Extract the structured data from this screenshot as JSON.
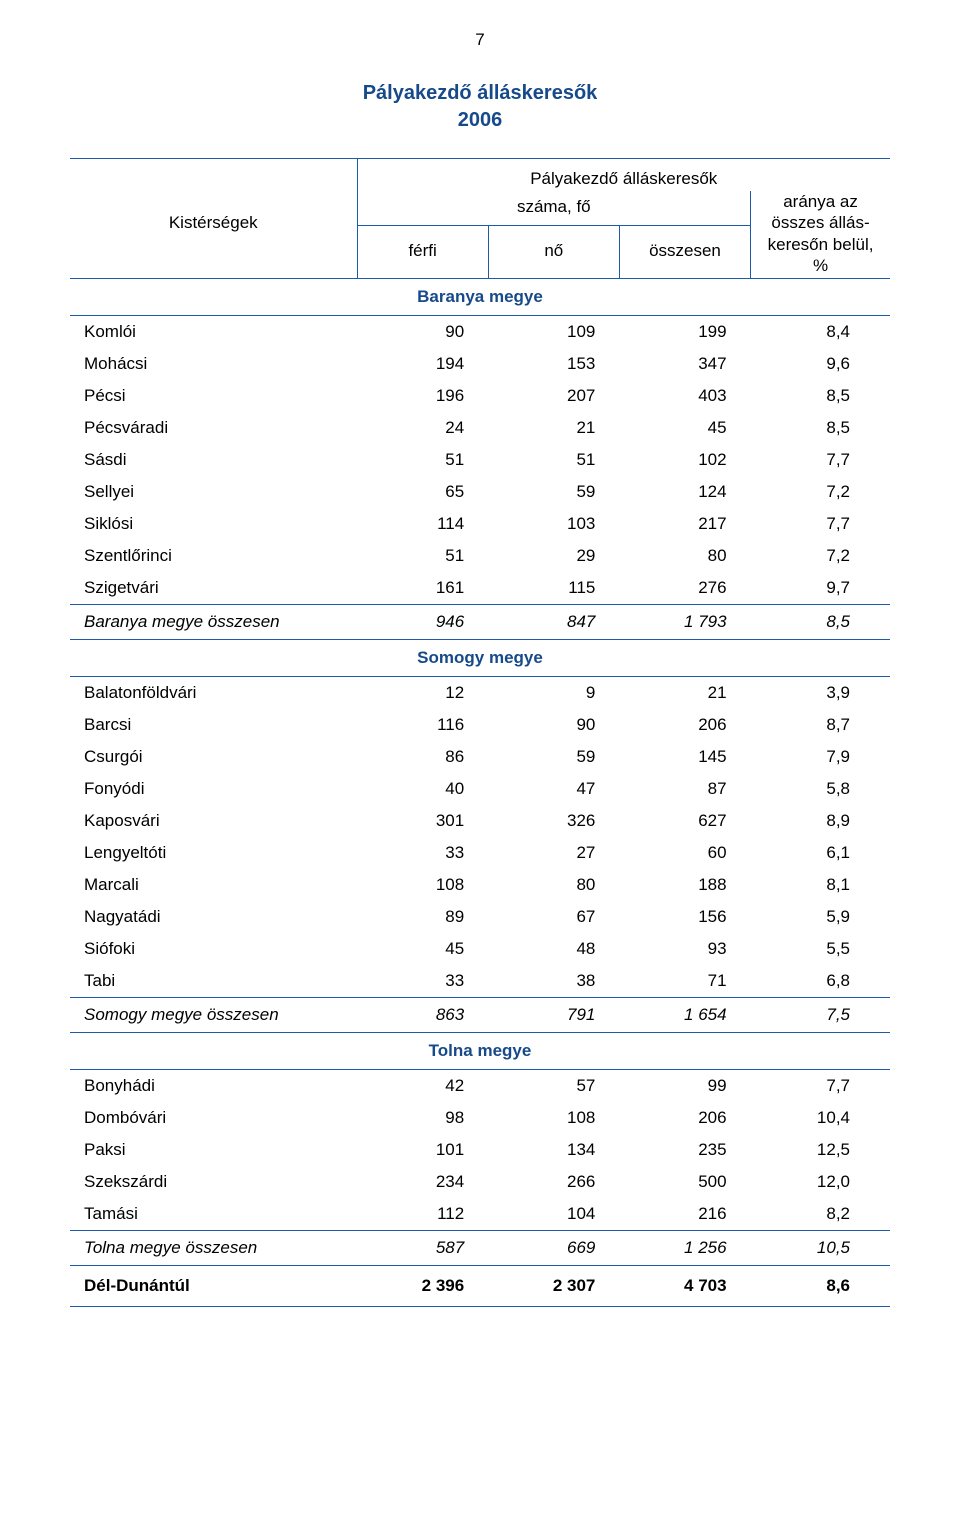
{
  "page_number": "7",
  "title_line1": "Pályakezdő álláskeresők",
  "title_line2": "2006",
  "header": {
    "kistersegek": "Kistérségek",
    "group_top": "Pályakezdő álláskeresők",
    "szama_fo": "száma, fő",
    "ferfi": "férfi",
    "no": "nő",
    "osszesen": "összesen",
    "ratio_l1": "aránya az",
    "ratio_l2": "összes állás-",
    "ratio_l3": "keresőn belül,",
    "ratio_l4": "%"
  },
  "sections": [
    {
      "title": "Baranya megye",
      "rows": [
        {
          "label": "Komlói",
          "m": "90",
          "f": "109",
          "t": "199",
          "p": "8,4"
        },
        {
          "label": "Mohácsi",
          "m": "194",
          "f": "153",
          "t": "347",
          "p": "9,6"
        },
        {
          "label": "Pécsi",
          "m": "196",
          "f": "207",
          "t": "403",
          "p": "8,5"
        },
        {
          "label": "Pécsváradi",
          "m": "24",
          "f": "21",
          "t": "45",
          "p": "8,5"
        },
        {
          "label": "Sásdi",
          "m": "51",
          "f": "51",
          "t": "102",
          "p": "7,7"
        },
        {
          "label": "Sellyei",
          "m": "65",
          "f": "59",
          "t": "124",
          "p": "7,2"
        },
        {
          "label": "Siklósi",
          "m": "114",
          "f": "103",
          "t": "217",
          "p": "7,7"
        },
        {
          "label": "Szentlőrinci",
          "m": "51",
          "f": "29",
          "t": "80",
          "p": "7,2"
        },
        {
          "label": "Szigetvári",
          "m": "161",
          "f": "115",
          "t": "276",
          "p": "9,7"
        }
      ],
      "subtotal": {
        "label": "Baranya megye összesen",
        "m": "946",
        "f": "847",
        "t": "1 793",
        "p": "8,5"
      }
    },
    {
      "title": "Somogy megye",
      "rows": [
        {
          "label": "Balatonföldvári",
          "m": "12",
          "f": "9",
          "t": "21",
          "p": "3,9"
        },
        {
          "label": "Barcsi",
          "m": "116",
          "f": "90",
          "t": "206",
          "p": "8,7"
        },
        {
          "label": "Csurgói",
          "m": "86",
          "f": "59",
          "t": "145",
          "p": "7,9"
        },
        {
          "label": "Fonyódi",
          "m": "40",
          "f": "47",
          "t": "87",
          "p": "5,8"
        },
        {
          "label": "Kaposvári",
          "m": "301",
          "f": "326",
          "t": "627",
          "p": "8,9"
        },
        {
          "label": "Lengyeltóti",
          "m": "33",
          "f": "27",
          "t": "60",
          "p": "6,1"
        },
        {
          "label": "Marcali",
          "m": "108",
          "f": "80",
          "t": "188",
          "p": "8,1"
        },
        {
          "label": "Nagyatádi",
          "m": "89",
          "f": "67",
          "t": "156",
          "p": "5,9"
        },
        {
          "label": "Siófoki",
          "m": "45",
          "f": "48",
          "t": "93",
          "p": "5,5"
        },
        {
          "label": "Tabi",
          "m": "33",
          "f": "38",
          "t": "71",
          "p": "6,8"
        }
      ],
      "subtotal": {
        "label": "Somogy megye összesen",
        "m": "863",
        "f": "791",
        "t": "1 654",
        "p": "7,5"
      }
    },
    {
      "title": "Tolna megye",
      "rows": [
        {
          "label": "Bonyhádi",
          "m": "42",
          "f": "57",
          "t": "99",
          "p": "7,7"
        },
        {
          "label": "Dombóvári",
          "m": "98",
          "f": "108",
          "t": "206",
          "p": "10,4"
        },
        {
          "label": "Paksi",
          "m": "101",
          "f": "134",
          "t": "235",
          "p": "12,5"
        },
        {
          "label": "Szekszárdi",
          "m": "234",
          "f": "266",
          "t": "500",
          "p": "12,0"
        },
        {
          "label": "Tamási",
          "m": "112",
          "f": "104",
          "t": "216",
          "p": "8,2"
        }
      ],
      "subtotal": {
        "label": "Tolna megye összesen",
        "m": "587",
        "f": "669",
        "t": "1 256",
        "p": "10,5"
      }
    }
  ],
  "grandtotal": {
    "label": "Dél-Dunántúl",
    "m": "2 396",
    "f": "2 307",
    "t": "4 703",
    "p": "8,6"
  },
  "colors": {
    "accent": "#164a8a",
    "rule": "#1d5aa8",
    "text": "#000000",
    "background": "#ffffff"
  }
}
